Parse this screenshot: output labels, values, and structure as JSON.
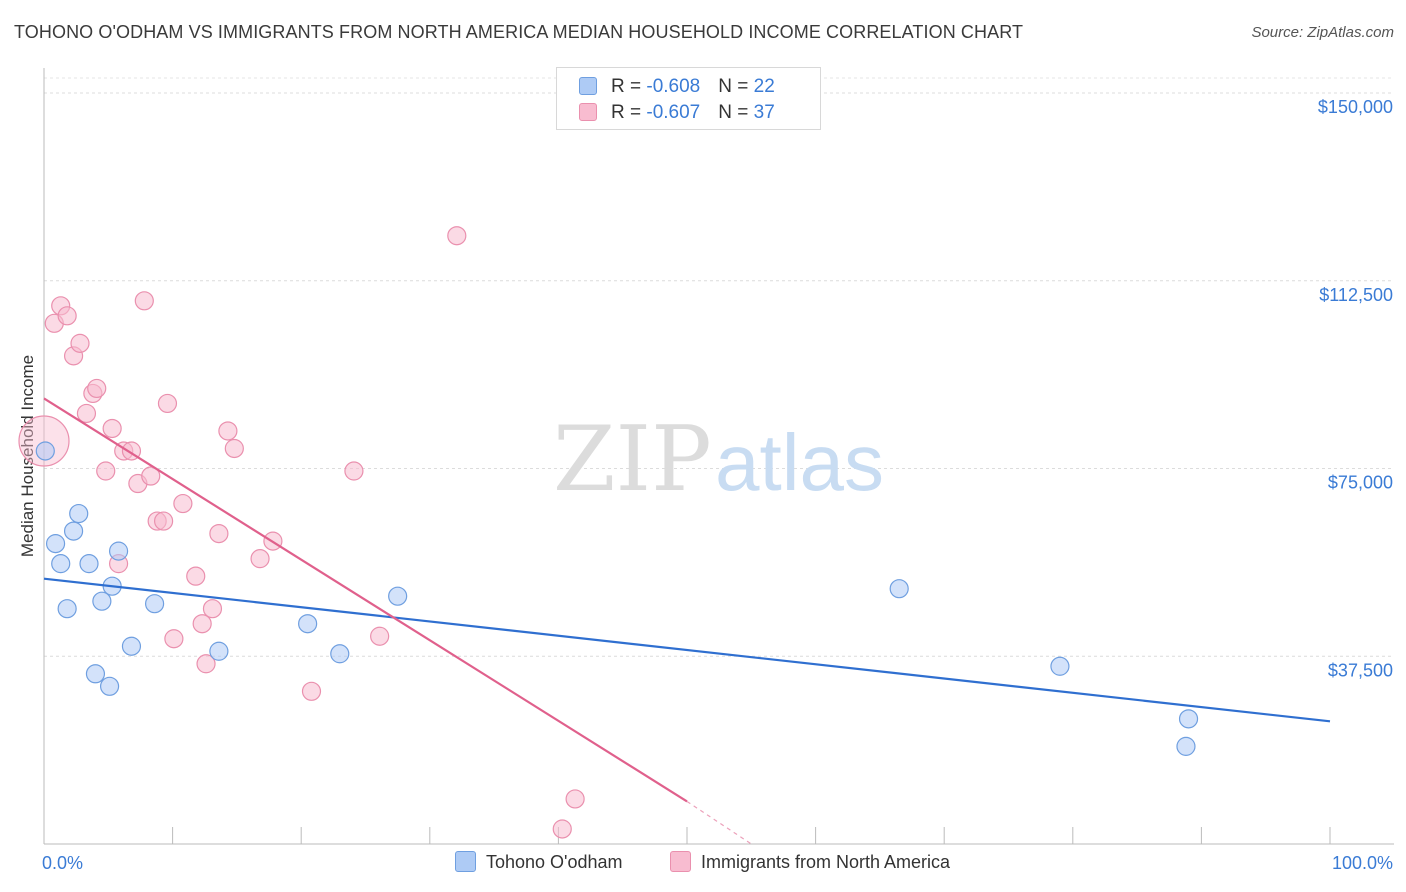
{
  "header": {
    "title": "TOHONO O'ODHAM VS IMMIGRANTS FROM NORTH AMERICA MEDIAN HOUSEHOLD INCOME CORRELATION CHART",
    "source": "Source: ZipAtlas.com"
  },
  "stats_box": {
    "rows": [
      {
        "r_label": "R = ",
        "r_value": "-0.608",
        "n_label": "N = ",
        "n_value": "22",
        "color": "#aecbf5"
      },
      {
        "r_label": "R = ",
        "r_value": "-0.607",
        "n_label": "N = ",
        "n_value": "37",
        "color": "#f8bcd0"
      }
    ]
  },
  "legend": {
    "items": [
      {
        "label": "Tohono O'odham",
        "color": "#aecbf5"
      },
      {
        "label": "Immigrants from North America",
        "color": "#f8bcd0"
      }
    ]
  },
  "watermark": {
    "zip": "ZIP",
    "atlas": "atlas"
  },
  "chart_data": {
    "type": "scatter",
    "title": "TOHONO O'ODHAM VS IMMIGRANTS FROM NORTH AMERICA MEDIAN HOUSEHOLD INCOME CORRELATION CHART",
    "xlabel": "",
    "ylabel": "Median Household Income",
    "xlim": [
      0,
      100
    ],
    "ylim": [
      0,
      155000
    ],
    "x_tick_labels": [
      "0.0%",
      "100.0%"
    ],
    "y_ticks": [
      37500,
      75000,
      112500,
      150000
    ],
    "y_tick_labels": [
      "$37,500",
      "$75,000",
      "$112,500",
      "$150,000"
    ],
    "grid": true,
    "legend_position": "bottom-center",
    "series": [
      {
        "name": "Tohono O'odham",
        "color": "#aecbf5",
        "edge_color": "#6f9fe0",
        "line_color": "#2f6fd0",
        "trend": {
          "x": [
            0,
            100
          ],
          "y": [
            53000,
            24500
          ]
        },
        "points": [
          {
            "x": 0.1,
            "y": 78500
          },
          {
            "x": 0.9,
            "y": 60000
          },
          {
            "x": 1.3,
            "y": 56000
          },
          {
            "x": 1.8,
            "y": 47000
          },
          {
            "x": 2.3,
            "y": 62500
          },
          {
            "x": 2.7,
            "y": 66000
          },
          {
            "x": 3.5,
            "y": 56000
          },
          {
            "x": 4.0,
            "y": 34000
          },
          {
            "x": 4.5,
            "y": 48500
          },
          {
            "x": 5.1,
            "y": 31500
          },
          {
            "x": 5.3,
            "y": 51500
          },
          {
            "x": 5.8,
            "y": 58500
          },
          {
            "x": 6.8,
            "y": 39500
          },
          {
            "x": 8.6,
            "y": 48000
          },
          {
            "x": 13.6,
            "y": 38500
          },
          {
            "x": 20.5,
            "y": 44000
          },
          {
            "x": 23.0,
            "y": 38000
          },
          {
            "x": 27.5,
            "y": 49500
          },
          {
            "x": 66.5,
            "y": 51000
          },
          {
            "x": 79.0,
            "y": 35500
          },
          {
            "x": 89.0,
            "y": 25000
          },
          {
            "x": 88.8,
            "y": 19500
          }
        ]
      },
      {
        "name": "Immigrants from North America",
        "color": "#f8bcd0",
        "edge_color": "#ea90ae",
        "line_color": "#e0608c",
        "trend": {
          "x": [
            0,
            50
          ],
          "y": [
            89000,
            8500
          ]
        },
        "trend_dashed": {
          "x": [
            50,
            55
          ],
          "y": [
            8500,
            0
          ]
        },
        "points": [
          {
            "x": 0.0,
            "y": 80500
          },
          {
            "x": 0.8,
            "y": 104000
          },
          {
            "x": 1.3,
            "y": 107500
          },
          {
            "x": 1.8,
            "y": 105500
          },
          {
            "x": 2.3,
            "y": 97500
          },
          {
            "x": 2.8,
            "y": 100000
          },
          {
            "x": 3.3,
            "y": 86000
          },
          {
            "x": 3.8,
            "y": 90000
          },
          {
            "x": 4.1,
            "y": 91000
          },
          {
            "x": 4.8,
            "y": 74500
          },
          {
            "x": 5.3,
            "y": 83000
          },
          {
            "x": 5.8,
            "y": 56000
          },
          {
            "x": 6.2,
            "y": 78500
          },
          {
            "x": 6.8,
            "y": 78500
          },
          {
            "x": 7.3,
            "y": 72000
          },
          {
            "x": 7.8,
            "y": 108500
          },
          {
            "x": 8.3,
            "y": 73500
          },
          {
            "x": 8.8,
            "y": 64500
          },
          {
            "x": 9.3,
            "y": 64500
          },
          {
            "x": 9.6,
            "y": 88000
          },
          {
            "x": 10.1,
            "y": 41000
          },
          {
            "x": 10.8,
            "y": 68000
          },
          {
            "x": 11.8,
            "y": 53500
          },
          {
            "x": 12.3,
            "y": 44000
          },
          {
            "x": 12.6,
            "y": 36000
          },
          {
            "x": 13.1,
            "y": 47000
          },
          {
            "x": 13.6,
            "y": 62000
          },
          {
            "x": 14.3,
            "y": 82500
          },
          {
            "x": 14.8,
            "y": 79000
          },
          {
            "x": 16.8,
            "y": 57000
          },
          {
            "x": 17.8,
            "y": 60500
          },
          {
            "x": 20.8,
            "y": 30500
          },
          {
            "x": 24.1,
            "y": 74500
          },
          {
            "x": 26.1,
            "y": 41500
          },
          {
            "x": 32.1,
            "y": 121500
          },
          {
            "x": 41.3,
            "y": 9000
          },
          {
            "x": 40.3,
            "y": 3000
          }
        ]
      }
    ]
  }
}
